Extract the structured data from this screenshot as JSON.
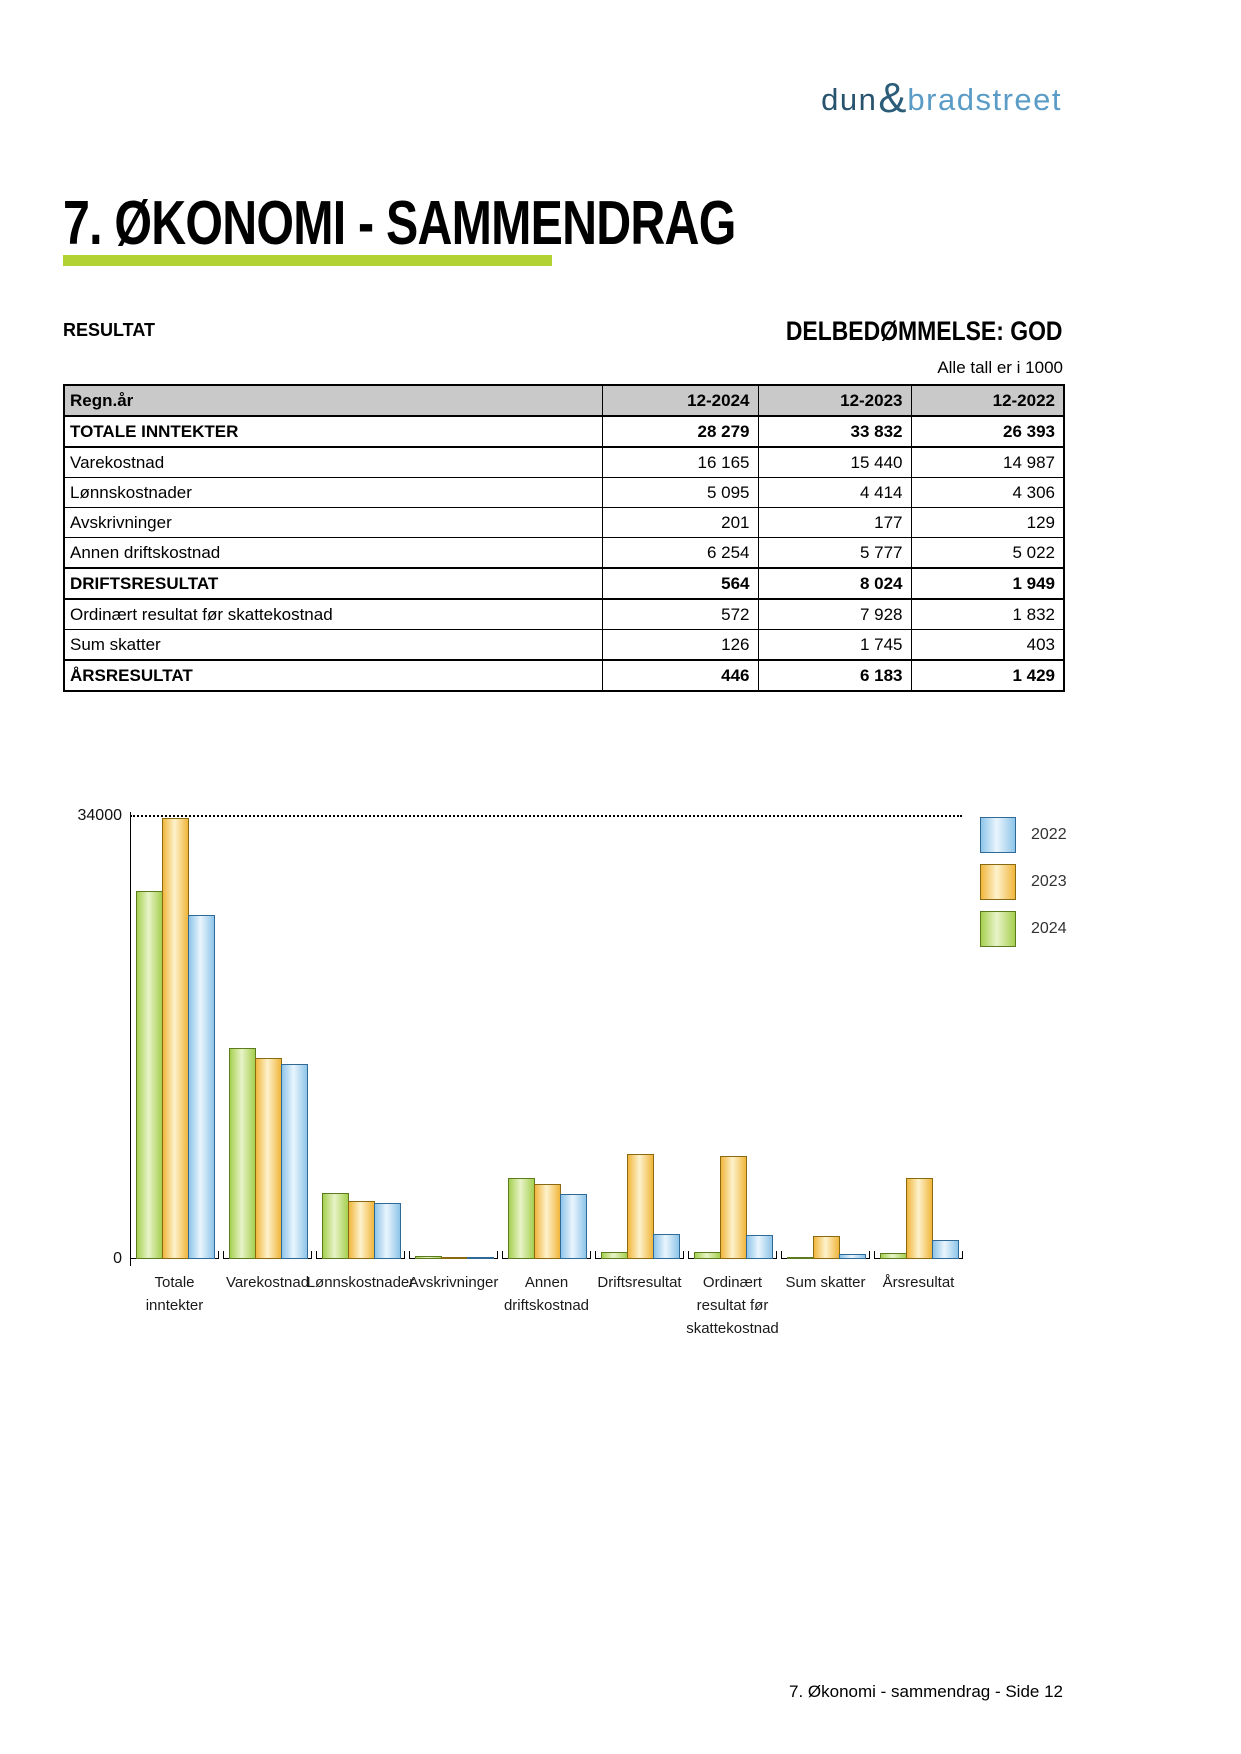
{
  "logo": {
    "part1": "dun",
    "amp": "&",
    "part2": "bradstreet"
  },
  "page": {
    "title": "7. ØKONOMI - SAMMENDRAG",
    "assessment": "DELBEDØMMELSE: GOD",
    "section_label": "RESULTAT",
    "units_note": "Alle tall er i 1000",
    "footer": "7. Økonomi - sammendrag - Side 12"
  },
  "table": {
    "header": [
      "Regn.år",
      "12-2024",
      "12-2023",
      "12-2022"
    ],
    "rows": [
      {
        "label": "TOTALE INNTEKTER",
        "values": [
          "28 279",
          "33 832",
          "26 393"
        ],
        "bold": true
      },
      {
        "label": "Varekostnad",
        "values": [
          "16 165",
          "15 440",
          "14 987"
        ],
        "bold": false
      },
      {
        "label": "Lønnskostnader",
        "values": [
          "5 095",
          "4 414",
          "4 306"
        ],
        "bold": false
      },
      {
        "label": "Avskrivninger",
        "values": [
          "201",
          "177",
          "129"
        ],
        "bold": false
      },
      {
        "label": "Annen driftskostnad",
        "values": [
          "6 254",
          "5 777",
          "5 022"
        ],
        "bold": false
      },
      {
        "label": "DRIFTSRESULTAT",
        "values": [
          "564",
          "8 024",
          "1 949"
        ],
        "bold": true
      },
      {
        "label": "Ordinært resultat før skattekostnad",
        "values": [
          "572",
          "7 928",
          "1 832"
        ],
        "bold": false
      },
      {
        "label": "Sum skatter",
        "values": [
          "126",
          "1 745",
          "403"
        ],
        "bold": false
      },
      {
        "label": "ÅRSRESULTAT",
        "values": [
          "446",
          "6 183",
          "1 429"
        ],
        "bold": true
      }
    ]
  },
  "chart_data": {
    "type": "bar",
    "title": "",
    "xlabel": "",
    "ylabel": "",
    "ylim": [
      0,
      34000
    ],
    "yticks_labels": {
      "max": "34000",
      "min": "0"
    },
    "grid": "single dotted top gridline at 34000",
    "legend_position": "top-right",
    "legend_order": [
      "2022",
      "2023",
      "2024"
    ],
    "categories": [
      [
        "Totale",
        "inntekter"
      ],
      [
        "Varekostnad"
      ],
      [
        "Lønnskostnader"
      ],
      [
        "Avskrivninger"
      ],
      [
        "Annen",
        "driftskostnad"
      ],
      [
        "Driftsresultat"
      ],
      [
        "Ordinært",
        "resultat før",
        "skattekostnad"
      ],
      [
        "Sum skatter"
      ],
      [
        "Årsresultat"
      ]
    ],
    "series": [
      {
        "name": "2024",
        "color": "#a6d050",
        "center": "#e8f3c8",
        "border": "#5c7a1e",
        "values": [
          28279,
          16165,
          5095,
          201,
          6254,
          564,
          572,
          126,
          446
        ]
      },
      {
        "name": "2023",
        "color": "#f1b63c",
        "center": "#fdf2cd",
        "border": "#8a6a10",
        "values": [
          33832,
          15440,
          4414,
          177,
          5777,
          8024,
          7928,
          1745,
          6183
        ]
      },
      {
        "name": "2022",
        "color": "#8ec5e9",
        "center": "#eaf5fd",
        "border": "#2f6a96",
        "values": [
          26393,
          14987,
          4306,
          129,
          5022,
          1949,
          1832,
          403,
          1429
        ]
      }
    ]
  },
  "colors": {
    "accent_rule": "#b2d234",
    "table_header_bg": "#c9c9c9",
    "logo_dark": "#27536d",
    "logo_light": "#5b9cc7"
  }
}
